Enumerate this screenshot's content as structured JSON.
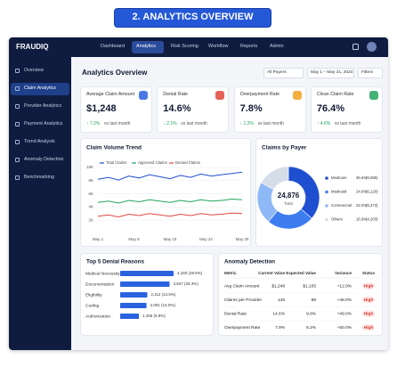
{
  "banner": "2. ANALYTICS OVERVIEW",
  "app": {
    "logo": "FRAUDIQ",
    "nav": [
      "Dashboard",
      "Analytics",
      "Risk Scoring",
      "Workflow",
      "Reports",
      "Admin"
    ],
    "sidebar": [
      "Overview",
      "Claim Analytics",
      "Provider Analytics",
      "Payment Analytics",
      "Trend Analysis",
      "Anomaly Detection",
      "Benchmarking"
    ]
  },
  "page_title": "Analytics Overview",
  "filters": [
    "All Payers",
    "May 1 – May 31, 2024",
    "Filters"
  ],
  "kpis": [
    {
      "label": "Average Claim Amount",
      "value": "$1,248",
      "change": "↑ 7.2%",
      "note": "vs last month"
    },
    {
      "label": "Denial Rate",
      "value": "14.6%",
      "change": "↓ 2.1%",
      "note": "vs last month"
    },
    {
      "label": "Overpayment Rate",
      "value": "7.8%",
      "change": "↓ 1.2%",
      "note": "vs last month"
    },
    {
      "label": "Clean Claim Rate",
      "value": "76.4%",
      "change": "↑ 4.6%",
      "note": "vs last month"
    }
  ],
  "line_chart": {
    "type": "line",
    "title": "Claim Volume Trend",
    "x": [
      1,
      3,
      5,
      7,
      9,
      11,
      13,
      15,
      17,
      19,
      21,
      23,
      25,
      27,
      29
    ],
    "series": [
      {
        "name": "Total Claims",
        "color": "#1f4fd1",
        "values": [
          8200,
          8500,
          8100,
          8700,
          8400,
          8900,
          8600,
          8300,
          8800,
          8500,
          9000,
          8700,
          8900,
          9100,
          9300
        ]
      },
      {
        "name": "Approved Claims",
        "color": "#22a45d",
        "values": [
          4700,
          4900,
          4600,
          5000,
          4800,
          5100,
          4900,
          4700,
          5000,
          4800,
          5100,
          4900,
          5000,
          5200,
          5100
        ]
      },
      {
        "name": "Denied Claims",
        "color": "#e0463c",
        "values": [
          2600,
          2800,
          2500,
          2900,
          2700,
          3000,
          2800,
          2600,
          2900,
          2700,
          3000,
          2800,
          2900,
          3100,
          3000
        ]
      }
    ],
    "xlim": [
      1,
      29
    ],
    "xticks": [
      {
        "value": 1,
        "label": "May 1"
      },
      {
        "value": 8,
        "label": "May 8"
      },
      {
        "value": 15,
        "label": "May 15"
      },
      {
        "value": 22,
        "label": "May 22"
      },
      {
        "value": 29,
        "label": "May 29"
      }
    ],
    "ylim": [
      0,
      10000
    ],
    "yticks": [
      {
        "value": 2000,
        "label": "2K"
      },
      {
        "value": 4000,
        "label": "4K"
      },
      {
        "value": 6000,
        "label": "6K"
      },
      {
        "value": 8000,
        "label": "8K"
      },
      {
        "value": 10000,
        "label": "10K"
      }
    ],
    "grid": true
  },
  "donut": {
    "type": "pie",
    "title": "Claims by Payer",
    "total": "24,876",
    "total_label": "Total",
    "slices": [
      {
        "name": "Medicare",
        "color": "#1f4fd1",
        "value": 36.5,
        "value_label": "36.5%",
        "count": 9080,
        "count_label": "(9,080)"
      },
      {
        "name": "Medicaid",
        "color": "#3d7df0",
        "value": 24.6,
        "value_label": "24.6%",
        "count": 6120,
        "count_label": "(6,120)"
      },
      {
        "name": "Commercial",
        "color": "#8fb8f7",
        "value": 22.0,
        "value_label": "22.0%",
        "count": 5473,
        "count_label": "(5,473)"
      },
      {
        "name": "Others",
        "color": "#d5dde9",
        "value": 16.9,
        "value_label": "16.9%",
        "count": 4203,
        "count_label": "(4,203)"
      }
    ]
  },
  "denials": {
    "type": "bar",
    "title": "Top 5 Denial Reasons",
    "color": "#2a62e0",
    "items": [
      {
        "name": "Medical Necessity",
        "value": 4160,
        "value_label": "4,160 (28.5%)"
      },
      {
        "name": "Documentation",
        "value": 3847,
        "value_label": "3,847 (26.3%)"
      },
      {
        "name": "Eligibility",
        "value": 2112,
        "value_label": "2,112 (14.5%)"
      },
      {
        "name": "Coding",
        "value": 2051,
        "value_label": "2,051 (14.0%)"
      },
      {
        "name": "Authorization",
        "value": 1456,
        "value_label": "1,456 (9.9%)"
      }
    ]
  },
  "anomaly": {
    "title": "Anomaly Detection",
    "columns": [
      "Metric",
      "Current Value",
      "Expected Value",
      "Variance",
      "Status"
    ],
    "rows": [
      [
        "Avg Claim Amount",
        "$1,248",
        "$1,105",
        "+12.9%",
        "High"
      ],
      [
        "Claims per Provider",
        "145",
        "98",
        "+48.0%",
        "High"
      ],
      [
        "Denial Rate",
        "14.6%",
        "9.8%",
        "+49.0%",
        "High"
      ],
      [
        "Overpayment Rate",
        "7.8%",
        "5.2%",
        "+50.0%",
        "High"
      ]
    ]
  }
}
